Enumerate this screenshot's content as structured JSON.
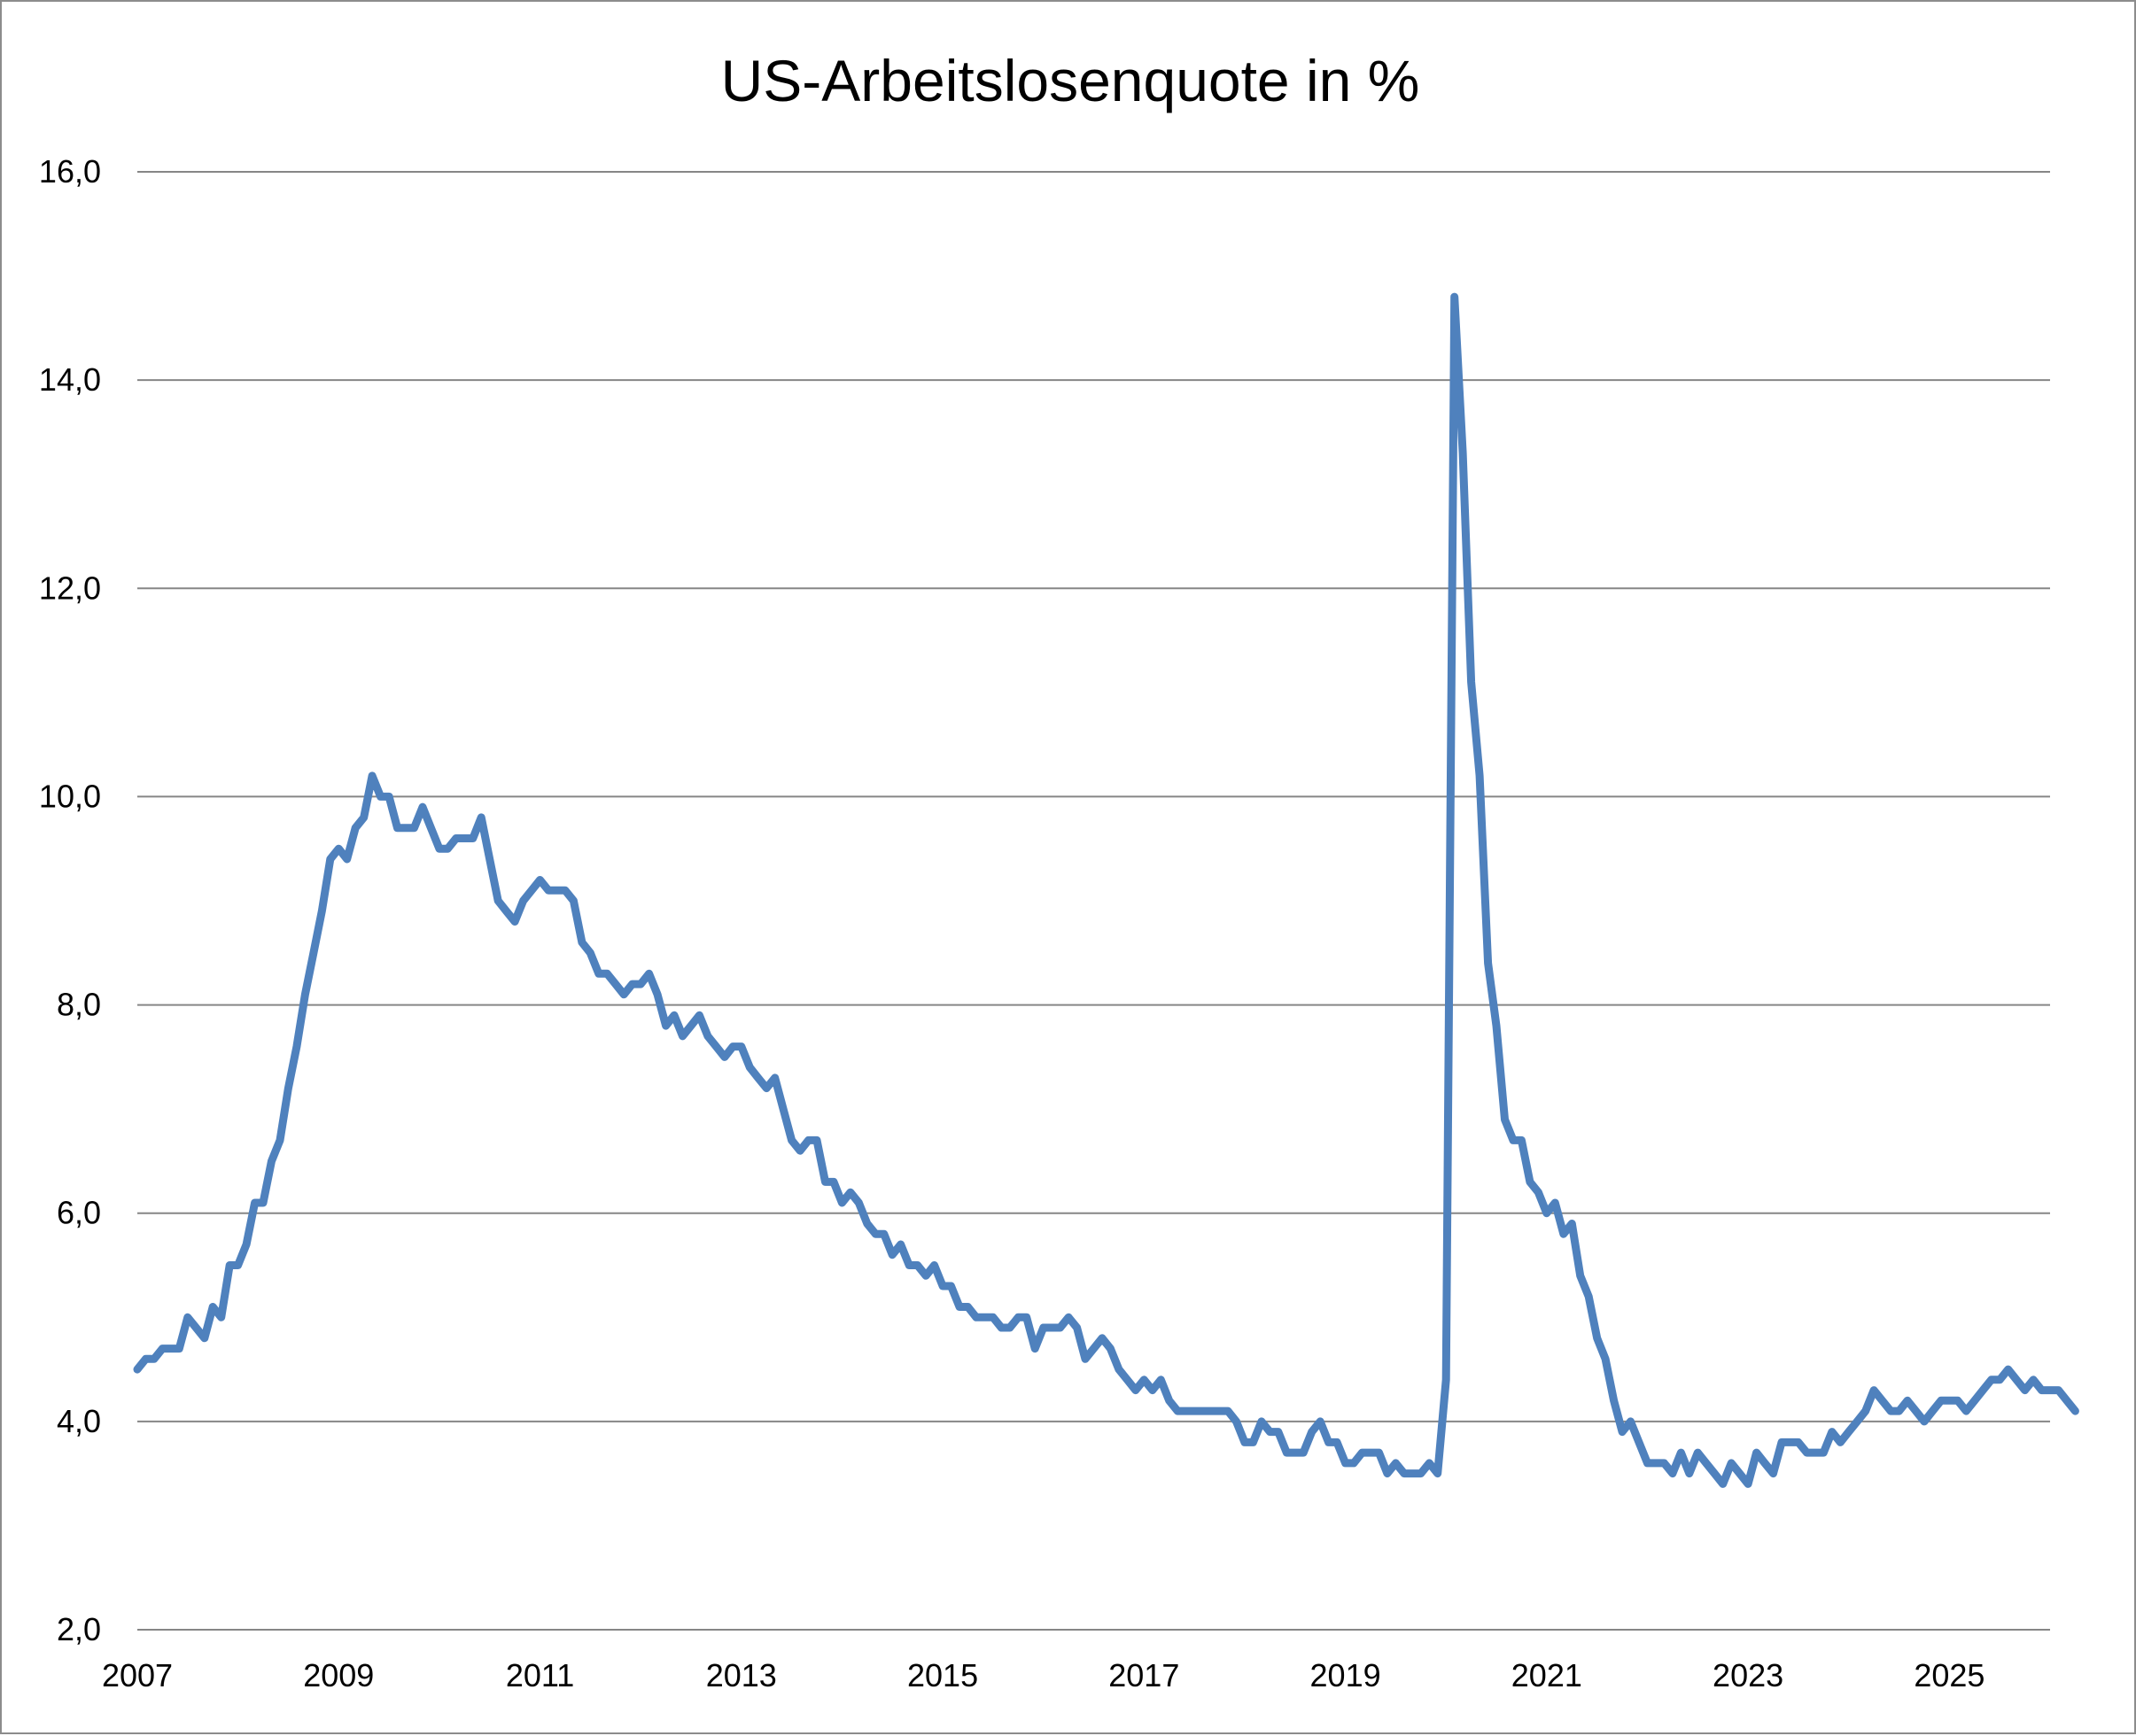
{
  "chart_data": {
    "type": "line",
    "title": "US-Arbeitslosenquote in %",
    "xlabel": "",
    "ylabel": "",
    "xlim": [
      2007.0,
      2026.0
    ],
    "ylim": [
      2.0,
      16.0
    ],
    "grid": true,
    "legend": "none",
    "series_color": "#4F81BD",
    "gridline_color": "#868686",
    "x_ticks": [
      2007,
      2009,
      2011,
      2013,
      2015,
      2017,
      2019,
      2021,
      2023,
      2025
    ],
    "x_tick_labels": [
      "2007",
      "2009",
      "2011",
      "2013",
      "2015",
      "2017",
      "2019",
      "2021",
      "2023",
      "2025"
    ],
    "y_ticks": [
      2,
      4,
      6,
      8,
      10,
      12,
      14,
      16
    ],
    "y_tick_labels": [
      "2,0",
      "4,0",
      "6,0",
      "8,0",
      "10,0",
      "12,0",
      "14,0",
      "16,0"
    ],
    "series": [
      {
        "x_start": 2007.0,
        "x_step_months": 1,
        "values": [
          4.5,
          4.6,
          4.6,
          4.7,
          4.7,
          4.7,
          5.0,
          4.9,
          4.8,
          5.1,
          5.0,
          5.5,
          5.5,
          5.7,
          6.1,
          6.1,
          6.5,
          6.7,
          7.2,
          7.6,
          8.1,
          8.5,
          8.9,
          9.4,
          9.5,
          9.4,
          9.7,
          9.8,
          10.2,
          10.0,
          10.0,
          9.7,
          9.7,
          9.7,
          9.9,
          9.7,
          9.5,
          9.5,
          9.6,
          9.6,
          9.6,
          9.8,
          9.4,
          9.0,
          8.9,
          8.8,
          9.0,
          9.1,
          9.2,
          9.1,
          9.1,
          9.1,
          9.0,
          8.6,
          8.5,
          8.3,
          8.3,
          8.2,
          8.1,
          8.2,
          8.2,
          8.3,
          8.1,
          7.8,
          7.9,
          7.7,
          7.8,
          7.9,
          7.7,
          7.6,
          7.5,
          7.6,
          7.6,
          7.4,
          7.3,
          7.2,
          7.3,
          7.0,
          6.7,
          6.6,
          6.7,
          6.7,
          6.3,
          6.3,
          6.1,
          6.2,
          6.1,
          5.9,
          5.8,
          5.8,
          5.6,
          5.7,
          5.5,
          5.5,
          5.4,
          5.5,
          5.3,
          5.3,
          5.1,
          5.1,
          5.0,
          5.0,
          5.0,
          4.9,
          4.9,
          5.0,
          5.0,
          4.7,
          4.9,
          4.9,
          4.9,
          5.0,
          4.9,
          4.6,
          4.7,
          4.8,
          4.7,
          4.5,
          4.4,
          4.3,
          4.4,
          4.3,
          4.4,
          4.2,
          4.1,
          4.1,
          4.1,
          4.1,
          4.1,
          4.1,
          4.1,
          4.0,
          3.8,
          3.8,
          4.0,
          3.9,
          3.9,
          3.7,
          3.7,
          3.7,
          3.9,
          4.0,
          3.8,
          3.8,
          3.6,
          3.6,
          3.7,
          3.7,
          3.7,
          3.5,
          3.6,
          3.5,
          3.5,
          3.5,
          3.6,
          3.5,
          4.4,
          14.8,
          13.3,
          11.1,
          10.2,
          8.4,
          7.8,
          6.9,
          6.7,
          6.7,
          6.3,
          6.2,
          6.0,
          6.1,
          5.8,
          5.9,
          5.4,
          5.2,
          4.8,
          4.6,
          4.2,
          3.9,
          4.0,
          3.8,
          3.6,
          3.6,
          3.6,
          3.5,
          3.7,
          3.5,
          3.7,
          3.6,
          3.5,
          3.4,
          3.6,
          3.5,
          3.4,
          3.7,
          3.6,
          3.5,
          3.8,
          3.8,
          3.8,
          3.7,
          3.7,
          3.7,
          3.9,
          3.8,
          3.9,
          4.0,
          4.1,
          4.3,
          4.2,
          4.1,
          4.1,
          4.2,
          4.1,
          4.0,
          4.1,
          4.2,
          4.2,
          4.2,
          4.1,
          4.2,
          4.3,
          4.4,
          4.4,
          4.5,
          4.4,
          4.3,
          4.4,
          4.3,
          4.3,
          4.3,
          4.2,
          4.1
        ]
      }
    ]
  }
}
